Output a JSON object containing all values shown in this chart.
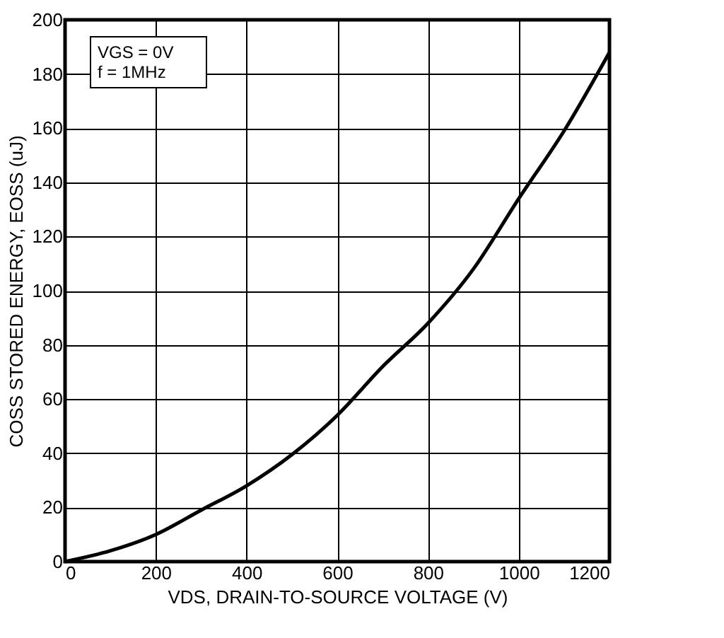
{
  "chart_data": {
    "type": "line",
    "xlabel": "VDS, DRAIN-TO-SOURCE VOLTAGE (V)",
    "ylabel": "COSS STORED ENERGY, EOSS (uJ)",
    "annotations": [
      "VGS = 0V",
      "f = 1MHz"
    ],
    "x": [
      0,
      100,
      200,
      300,
      400,
      500,
      600,
      700,
      800,
      900,
      1000,
      1100,
      1200
    ],
    "series": [
      {
        "color": "#000000",
        "values": [
          0,
          4,
          10,
          19,
          28,
          39.5,
          54,
          72,
          88,
          108,
          134,
          159,
          188
        ]
      }
    ],
    "xlim": [
      0,
      1200
    ],
    "xticks": [
      0,
      200,
      400,
      600,
      800,
      1000,
      1200
    ],
    "ylim": [
      0,
      200
    ],
    "yticks": [
      0,
      20,
      40,
      60,
      80,
      100,
      120,
      140,
      160,
      180,
      200
    ],
    "grid": true,
    "marker": "none",
    "line_style": "solid"
  }
}
